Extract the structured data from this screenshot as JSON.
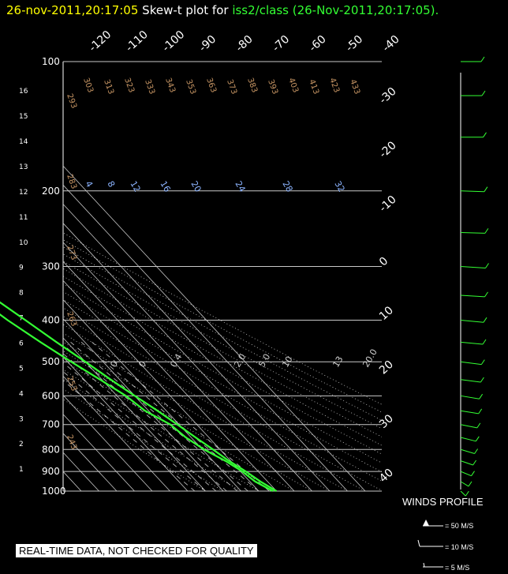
{
  "header": {
    "timestamp": "26-nov-2011,20:17:05",
    "plot_label": "Skew-t plot for",
    "source": "iss2/class (26-Nov-2011,20:17:05)",
    "period": "."
  },
  "notice": "REAL-TIME DATA, NOT CHECKED FOR QUALITY",
  "winds": {
    "title": "WINDS PROFILE",
    "legend": [
      "= 50 M/S",
      "= 10 M/S",
      "= 5 M/S"
    ]
  },
  "colors": {
    "profile": "#33ff33",
    "grid": "#c8c8c8",
    "axis_labels": "#ffffff",
    "theta_labels": "#c89664",
    "mixing_labels": "#8cb4ff"
  },
  "chart_data": {
    "type": "line",
    "title": "Skew-t plot for iss2/class (26-Nov-2011,20:17:05).",
    "pressure_levels_hpa": [
      1000,
      900,
      800,
      700,
      600,
      500,
      400,
      300,
      200,
      100
    ],
    "height_km_ticks": [
      "1",
      "2",
      "3",
      "4",
      "5",
      "6",
      "7",
      "8",
      "9",
      "10",
      "11",
      "12",
      "13",
      "14",
      "15",
      "16"
    ],
    "temperature_ticks_top": [
      "-120",
      "-110",
      "-100",
      "-90",
      "-80",
      "-70",
      "-60",
      "-50",
      "-40"
    ],
    "temperature_ticks_right": [
      "-30",
      "-20",
      "-10",
      "0",
      "10",
      "20",
      "30",
      "40"
    ],
    "theta_labels": [
      "303",
      "313",
      "323",
      "333",
      "343",
      "353",
      "363",
      "373",
      "383",
      "393",
      "403",
      "413",
      "423",
      "433",
      "293",
      "283",
      "273",
      "263",
      "253",
      "243"
    ],
    "mixing_ratio_labels": [
      "4",
      "8",
      "12",
      "16",
      "20",
      "24",
      "28",
      "32"
    ],
    "lower_line_labels": [
      "0.",
      "0.",
      "0.4",
      "2.0",
      "5.0",
      "10",
      "13",
      "20.0"
    ],
    "series": [
      {
        "name": "temperature",
        "pressure": [
          1000,
          950,
          900,
          850,
          800,
          750,
          700,
          650,
          600,
          550,
          500,
          450,
          400,
          350,
          300,
          250,
          200,
          150,
          120,
          100
        ],
        "temp_c": [
          10,
          6,
          3,
          -1,
          -4,
          -7.5,
          -11,
          -15,
          -20,
          -25,
          -30,
          -36,
          -42,
          -49,
          -54,
          -58,
          -61,
          -63,
          -61,
          -60
        ]
      },
      {
        "name": "dewpoint",
        "pressure": [
          1000,
          950,
          900,
          850,
          800,
          750,
          700,
          650,
          600,
          550,
          500,
          450,
          400,
          350,
          300,
          250,
          200,
          150,
          120,
          100
        ],
        "temp_c": [
          8,
          3,
          1,
          -3,
          -9,
          -13,
          -15,
          -22,
          -25,
          -31,
          -38,
          -45,
          -52,
          -58,
          -60,
          -62,
          -66,
          -68,
          -66,
          -65
        ]
      }
    ],
    "wind_profile": {
      "pressure": [
        1000,
        950,
        900,
        850,
        800,
        750,
        700,
        650,
        600,
        550,
        500,
        450,
        400,
        350,
        300,
        250,
        200,
        150,
        120,
        100
      ],
      "direction_deg": [
        200,
        210,
        220,
        225,
        230,
        235,
        240,
        245,
        245,
        250,
        250,
        255,
        255,
        260,
        260,
        265,
        265,
        270,
        270,
        270
      ],
      "speed_ms": [
        5,
        8,
        10,
        12,
        14,
        15,
        16,
        18,
        20,
        22,
        24,
        26,
        28,
        30,
        32,
        30,
        28,
        25,
        22,
        20
      ]
    }
  }
}
